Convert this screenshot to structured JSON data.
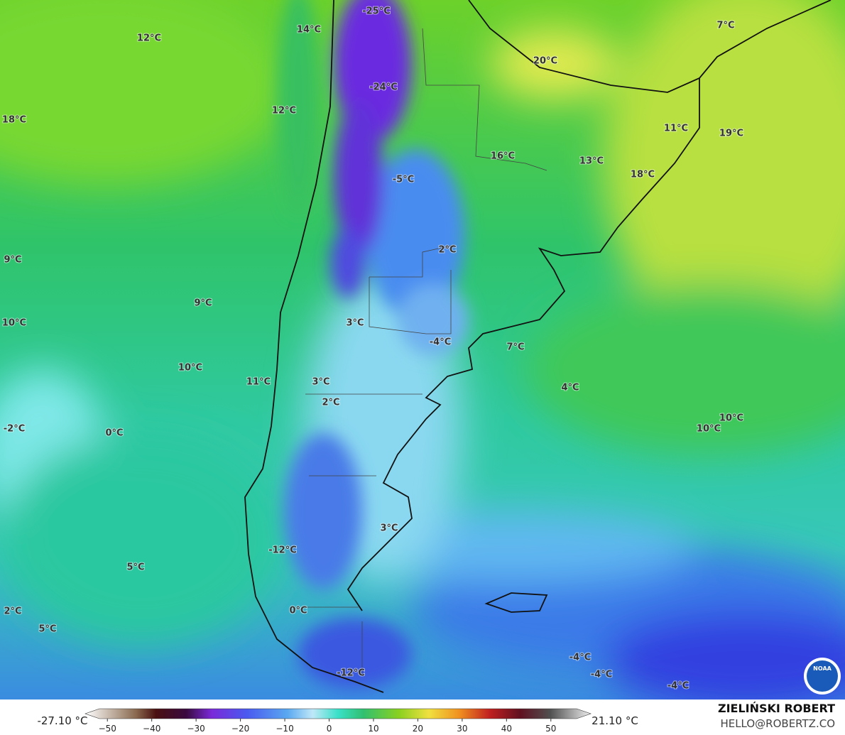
{
  "map": {
    "labels": [
      "-25°C",
      "14°C",
      "12°C",
      "7°C",
      "20°C",
      "-24°C",
      "12°C",
      "18°C",
      "11°C",
      "19°C",
      "16°C",
      "13°C",
      "18°C",
      "-5°C",
      "2°C",
      "9°C",
      "9°C",
      "3°C",
      "10°C",
      "-4°C",
      "7°C",
      "10°C",
      "4°C",
      "11°C",
      "3°C",
      "2°C",
      "10°C",
      "10°C",
      "-2°C",
      "0°C",
      "3°C",
      "-12°C",
      "5°C",
      "2°C",
      "0°C",
      "5°C",
      "-4°C",
      "-4°C",
      "-12°C",
      "-4°C"
    ]
  },
  "colorbar": {
    "min_label": "-27.10 °C",
    "max_label": "21.10 °C",
    "lim": [
      -55,
      59
    ],
    "ticks": [
      {
        "value": -50,
        "label": "−50"
      },
      {
        "value": -40,
        "label": "−40"
      },
      {
        "value": -30,
        "label": "−30"
      },
      {
        "value": -20,
        "label": "−20"
      },
      {
        "value": -10,
        "label": "−10"
      },
      0,
      10,
      20,
      30,
      40,
      50
    ]
  },
  "credits": {
    "author": "ZIELIŃSKI ROBERT",
    "contact": "HELLO@ROBERTZ.CO",
    "logo": "NOAA"
  }
}
